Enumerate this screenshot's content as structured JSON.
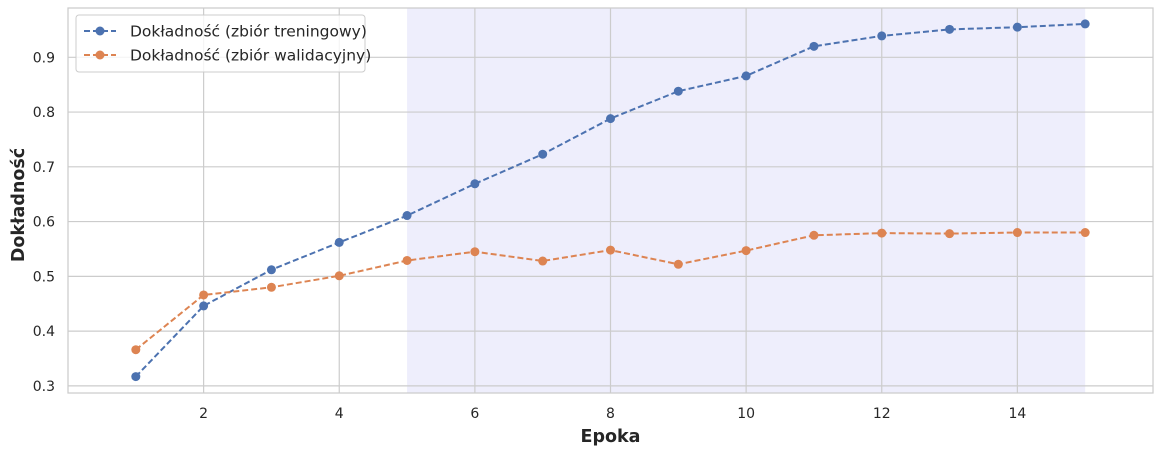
{
  "chart_data": {
    "type": "line",
    "title": "",
    "xlabel": "Epoka",
    "ylabel": "Dokładność",
    "xlim": [
      0.0,
      16.0
    ],
    "ylim": [
      0.287,
      0.99
    ],
    "xticks": [
      2,
      4,
      6,
      8,
      10,
      12,
      14
    ],
    "yticks": [
      0.3,
      0.4,
      0.5,
      0.6,
      0.7,
      0.8,
      0.9
    ],
    "grid": true,
    "legend_position": "top-left",
    "highlight_span": {
      "x_start": 5,
      "x_end": 15,
      "color": "#eeeefc"
    },
    "x": [
      1,
      2,
      3,
      4,
      5,
      6,
      7,
      8,
      9,
      10,
      11,
      12,
      13,
      14,
      15
    ],
    "series": [
      {
        "name": "Dokładność (zbiór treningowy)",
        "color": "#4c72b0",
        "linestyle": "dashed",
        "marker": "circle",
        "values": [
          0.317,
          0.446,
          0.512,
          0.562,
          0.611,
          0.669,
          0.723,
          0.788,
          0.838,
          0.866,
          0.92,
          0.939,
          0.951,
          0.955,
          0.961
        ]
      },
      {
        "name": "Dokładność (zbiór walidacyjny)",
        "color": "#dd8452",
        "linestyle": "dashed",
        "marker": "circle",
        "values": [
          0.366,
          0.466,
          0.48,
          0.501,
          0.529,
          0.545,
          0.528,
          0.548,
          0.522,
          0.547,
          0.575,
          0.579,
          0.578,
          0.58,
          0.58
        ]
      }
    ]
  }
}
